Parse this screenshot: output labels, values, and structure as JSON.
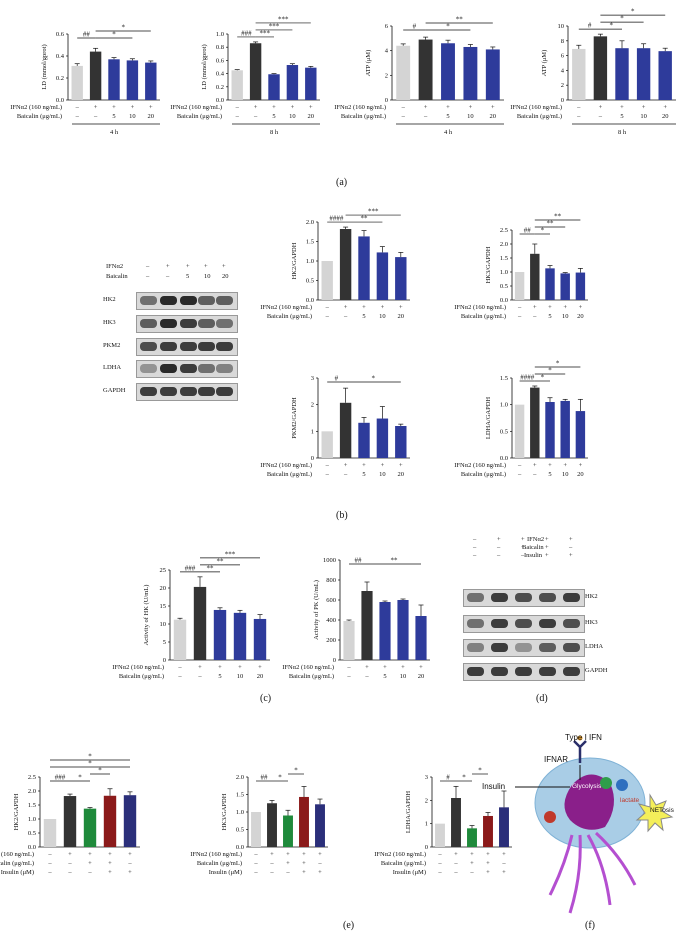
{
  "colors": {
    "ctrl": "#d4d4d4",
    "ifn": "#333333",
    "baic": "#2e3b9b",
    "green": "#1f8a3b",
    "red": "#8b1a1a",
    "navy": "#2b2f7a"
  },
  "panel_labels": {
    "a": "(a)",
    "b": "(b)",
    "c": "(c)",
    "d": "(d)",
    "e": "(e)",
    "f": "(f)"
  },
  "rows": {
    "ifn": "IFNα2 (160 ng/mL)",
    "baic": "Baicalin (μg/mL)",
    "ins": "Insulin (μM)",
    "ifn_cols4": [
      "–",
      "+",
      "+",
      "+",
      "+"
    ],
    "baic_cols4": [
      "–",
      "–",
      "5",
      "10",
      "20"
    ],
    "ifn_cols5": [
      "–",
      "+",
      "+",
      "+",
      "+"
    ],
    "baic_cols5": [
      "–",
      "–",
      "+",
      "+",
      "–"
    ],
    "ins_cols5": [
      "–",
      "–",
      "–",
      "+",
      "+"
    ],
    "h4": "4 h",
    "h8": "8 h"
  },
  "chart_data": [
    {
      "id": "a1",
      "type": "bar",
      "ylabel": "LD (mmol/gprot)",
      "ylim": [
        0,
        0.6
      ],
      "yticks": [
        "0.0",
        "0.2",
        "0.4",
        "0.6"
      ],
      "values": [
        0.31,
        0.44,
        0.37,
        0.36,
        0.34
      ],
      "errors": [
        0.02,
        0.03,
        0.015,
        0.015,
        0.015
      ],
      "colors": [
        "ctrl",
        "ifn",
        "baic",
        "baic",
        "baic"
      ],
      "sig": [
        {
          "t": "##",
          "a": 0,
          "b": 1,
          "lvl": 0
        },
        {
          "t": "*",
          "a": 1,
          "b": 3,
          "lvl": 0
        },
        {
          "t": "*",
          "a": 1,
          "b": 4,
          "lvl": 1
        }
      ],
      "rows": "a",
      "time": "4 h"
    },
    {
      "id": "a2",
      "type": "bar",
      "ylabel": "LD (mmol/gprot)",
      "ylim": [
        0,
        1.0
      ],
      "yticks": [
        "0.0",
        "0.2",
        "0.4",
        "0.6",
        "0.8",
        "1.0"
      ],
      "values": [
        0.45,
        0.86,
        0.39,
        0.53,
        0.49
      ],
      "errors": [
        0.01,
        0.02,
        0.01,
        0.02,
        0.02
      ],
      "colors": [
        "ctrl",
        "ifn",
        "baic",
        "baic",
        "baic"
      ],
      "sig": [
        {
          "t": "###",
          "a": 0,
          "b": 1,
          "lvl": 0
        },
        {
          "t": "***",
          "a": 1,
          "b": 2,
          "lvl": 0
        },
        {
          "t": "***",
          "a": 1,
          "b": 3,
          "lvl": 1
        },
        {
          "t": "***",
          "a": 1,
          "b": 4,
          "lvl": 2
        }
      ],
      "rows": "a",
      "time": "8 h"
    },
    {
      "id": "a3",
      "type": "bar",
      "ylabel": "ATP (μM)",
      "ylim": [
        0,
        6
      ],
      "yticks": [
        "0",
        "2",
        "4",
        "6"
      ],
      "values": [
        4.4,
        4.9,
        4.6,
        4.3,
        4.1
      ],
      "errors": [
        0.15,
        0.2,
        0.25,
        0.2,
        0.2
      ],
      "colors": [
        "ctrl",
        "ifn",
        "baic",
        "baic",
        "baic"
      ],
      "sig": [
        {
          "t": "#",
          "a": 0,
          "b": 1,
          "lvl": 0
        },
        {
          "t": "*",
          "a": 1,
          "b": 3,
          "lvl": 0
        },
        {
          "t": "**",
          "a": 1,
          "b": 4,
          "lvl": 1
        }
      ],
      "rows": "a",
      "time": "4 h"
    },
    {
      "id": "a4",
      "type": "bar",
      "ylabel": "ATP (μM)",
      "ylim": [
        0,
        10
      ],
      "yticks": [
        "0",
        "2",
        "4",
        "6",
        "8",
        "10"
      ],
      "values": [
        6.9,
        8.6,
        7.0,
        7.0,
        6.6
      ],
      "errors": [
        0.5,
        0.3,
        1.0,
        0.6,
        0.4
      ],
      "colors": [
        "ctrl",
        "ifn",
        "baic",
        "baic",
        "baic"
      ],
      "sig": [
        {
          "t": "#",
          "a": 0,
          "b": 1,
          "lvl": 0
        },
        {
          "t": "*",
          "a": 1,
          "b": 2,
          "lvl": 0
        },
        {
          "t": "*",
          "a": 1,
          "b": 3,
          "lvl": 1
        },
        {
          "t": "*",
          "a": 1,
          "b": 4,
          "lvl": 2
        }
      ],
      "rows": "a",
      "time": "8 h"
    },
    {
      "id": "b1",
      "type": "bar",
      "ylabel": "HK2/GAPDH",
      "ylim": [
        0,
        2.0
      ],
      "yticks": [
        "0.0",
        "0.5",
        "1.0",
        "1.5",
        "2.0"
      ],
      "values": [
        1.0,
        1.82,
        1.63,
        1.22,
        1.1
      ],
      "errors": [
        0,
        0.05,
        0.15,
        0.15,
        0.12
      ],
      "colors": [
        "ctrl",
        "ifn",
        "baic",
        "baic",
        "baic"
      ],
      "sig": [
        {
          "t": "####",
          "a": 0,
          "b": 1,
          "lvl": 0
        },
        {
          "t": "**",
          "a": 1,
          "b": 3,
          "lvl": 0
        },
        {
          "t": "***",
          "a": 1,
          "b": 4,
          "lvl": 1
        }
      ],
      "rows": "b"
    },
    {
      "id": "b2",
      "type": "bar",
      "ylabel": "HK3/GAPDH",
      "ylim": [
        0,
        2.5
      ],
      "yticks": [
        "0.0",
        "0.5",
        "1.0",
        "1.5",
        "2.0",
        "2.5"
      ],
      "values": [
        1.0,
        1.65,
        1.13,
        0.95,
        0.98
      ],
      "errors": [
        0,
        0.35,
        0.1,
        0.03,
        0.15
      ],
      "colors": [
        "ctrl",
        "ifn",
        "baic",
        "baic",
        "baic"
      ],
      "sig": [
        {
          "t": "##",
          "a": 0,
          "b": 1,
          "lvl": 0
        },
        {
          "t": "*",
          "a": 1,
          "b": 2,
          "lvl": 0
        },
        {
          "t": "**",
          "a": 1,
          "b": 3,
          "lvl": 1
        },
        {
          "t": "**",
          "a": 1,
          "b": 4,
          "lvl": 2
        }
      ],
      "rows": "b"
    },
    {
      "id": "b3",
      "type": "bar",
      "ylabel": "PKM2/GAPDH",
      "ylim": [
        0,
        3
      ],
      "yticks": [
        "0",
        "1",
        "2",
        "3"
      ],
      "values": [
        1.0,
        2.07,
        1.32,
        1.48,
        1.2
      ],
      "errors": [
        0,
        0.55,
        0.2,
        0.45,
        0.07
      ],
      "colors": [
        "ctrl",
        "ifn",
        "baic",
        "baic",
        "baic"
      ],
      "sig": [
        {
          "t": "#",
          "a": 0,
          "b": 1,
          "lvl": 0
        },
        {
          "t": "*",
          "a": 1,
          "b": 4,
          "lvl": 0
        }
      ],
      "rows": "b"
    },
    {
      "id": "b4",
      "type": "bar",
      "ylabel": "LDHA/GAPDH",
      "ylim": [
        0,
        1.5
      ],
      "yticks": [
        "0.0",
        "0.5",
        "1.0",
        "1.5"
      ],
      "values": [
        1.0,
        1.32,
        1.05,
        1.07,
        0.88
      ],
      "errors": [
        0,
        0.03,
        0.08,
        0.03,
        0.22
      ],
      "colors": [
        "ctrl",
        "ifn",
        "baic",
        "baic",
        "baic"
      ],
      "sig": [
        {
          "t": "####",
          "a": 0,
          "b": 1,
          "lvl": 0
        },
        {
          "t": "*",
          "a": 1,
          "b": 2,
          "lvl": 0
        },
        {
          "t": "*",
          "a": 1,
          "b": 3,
          "lvl": 1
        },
        {
          "t": "*",
          "a": 1,
          "b": 4,
          "lvl": 2
        }
      ],
      "rows": "b"
    },
    {
      "id": "c1",
      "type": "bar",
      "ylabel": "Activity of HK (U/mL)",
      "ylim": [
        0,
        25
      ],
      "yticks": [
        "0",
        "5",
        "10",
        "15",
        "20",
        "25"
      ],
      "values": [
        11.2,
        20.3,
        13.9,
        13.1,
        11.4
      ],
      "errors": [
        0.4,
        2.8,
        0.6,
        0.7,
        1.2
      ],
      "colors": [
        "ctrl",
        "ifn",
        "baic",
        "baic",
        "baic"
      ],
      "sig": [
        {
          "t": "###",
          "a": 0,
          "b": 1,
          "lvl": 0
        },
        {
          "t": "**",
          "a": 1,
          "b": 2,
          "lvl": 0
        },
        {
          "t": "**",
          "a": 1,
          "b": 3,
          "lvl": 1
        },
        {
          "t": "***",
          "a": 1,
          "b": 4,
          "lvl": 2
        }
      ],
      "rows": "c"
    },
    {
      "id": "c2",
      "type": "bar",
      "ylabel": "Activity of PK (U/mL)",
      "ylim": [
        0,
        1000
      ],
      "yticks": [
        "0",
        "200",
        "400",
        "600",
        "800",
        "1000"
      ],
      "values": [
        390,
        690,
        580,
        600,
        440
      ],
      "errors": [
        10,
        90,
        10,
        10,
        110
      ],
      "colors": [
        "ctrl",
        "ifn",
        "baic",
        "baic",
        "baic"
      ],
      "sig": [
        {
          "t": "##",
          "a": 0,
          "b": 1,
          "lvl": 0
        },
        {
          "t": "**",
          "a": 1,
          "b": 4,
          "lvl": 0
        }
      ],
      "rows": "c"
    },
    {
      "id": "e1",
      "type": "bar",
      "ylabel": "HK2/GAPDH",
      "ylim": [
        0,
        2.5
      ],
      "yticks": [
        "0.0",
        "0.5",
        "1.0",
        "1.5",
        "2.0",
        "2.5"
      ],
      "values": [
        1.0,
        1.82,
        1.37,
        1.83,
        1.85
      ],
      "errors": [
        0,
        0.07,
        0.04,
        0.25,
        0.12
      ],
      "colors": [
        "ctrl",
        "ifn",
        "green",
        "red",
        "navy"
      ],
      "sig": [
        {
          "t": "###",
          "a": 0,
          "b": 1,
          "lvl": 0
        },
        {
          "t": "*",
          "a": 1,
          "b": 2,
          "lvl": 0
        },
        {
          "t": "*",
          "a": 2,
          "b": 3,
          "lvl": 1
        },
        {
          "t": "*",
          "a": 0,
          "b": 4,
          "lvl": 2
        },
        {
          "t": "*",
          "a": 0,
          "b": 4,
          "lvl": 3
        }
      ],
      "rows": "e"
    },
    {
      "id": "e2",
      "type": "bar",
      "ylabel": "HK3/GAPDH",
      "ylim": [
        0,
        2.0
      ],
      "yticks": [
        "0.0",
        "0.5",
        "1.0",
        "1.5",
        "2.0"
      ],
      "values": [
        1.0,
        1.25,
        0.9,
        1.43,
        1.22
      ],
      "errors": [
        0,
        0.08,
        0.15,
        0.3,
        0.15
      ],
      "colors": [
        "ctrl",
        "ifn",
        "green",
        "red",
        "navy"
      ],
      "sig": [
        {
          "t": "##",
          "a": 0,
          "b": 1,
          "lvl": 0
        },
        {
          "t": "*",
          "a": 1,
          "b": 2,
          "lvl": 0
        },
        {
          "t": "*",
          "a": 2,
          "b": 3,
          "lvl": 1
        }
      ],
      "rows": "e"
    },
    {
      "id": "e3",
      "type": "bar",
      "ylabel": "LDHA/GAPDH",
      "ylim": [
        0,
        3
      ],
      "yticks": [
        "0",
        "1",
        "2",
        "3"
      ],
      "values": [
        1.0,
        2.1,
        0.8,
        1.33,
        1.7
      ],
      "errors": [
        0,
        0.5,
        0.12,
        0.15,
        0.7
      ],
      "colors": [
        "ctrl",
        "ifn",
        "green",
        "red",
        "navy"
      ],
      "sig": [
        {
          "t": "#",
          "a": 0,
          "b": 1,
          "lvl": 0
        },
        {
          "t": "*",
          "a": 1,
          "b": 2,
          "lvl": 0
        },
        {
          "t": "*",
          "a": 2,
          "b": 3,
          "lvl": 1
        }
      ],
      "rows": "e"
    }
  ],
  "blot_b": {
    "header_ifn": "IFNα2",
    "header_baic": "Baicalin",
    "ifn": [
      "–",
      "+",
      "+",
      "+",
      "+"
    ],
    "baic": [
      "–",
      "–",
      "5",
      "10",
      "20"
    ],
    "proteins": [
      "HK2",
      "HK3",
      "PKM2",
      "LDHA",
      "GAPDH"
    ],
    "intensity": [
      [
        0.6,
        1,
        1,
        0.7,
        0.7
      ],
      [
        0.7,
        1,
        0.9,
        0.7,
        0.6
      ],
      [
        0.8,
        0.9,
        0.9,
        0.9,
        0.9
      ],
      [
        0.4,
        1,
        0.9,
        0.6,
        0.5
      ],
      [
        0.9,
        0.9,
        0.9,
        0.9,
        0.9
      ]
    ]
  },
  "blot_d": {
    "header_ifn": "IFNα2",
    "header_baic": "Baicalin",
    "header_ins": "Insulin",
    "ifn": [
      "–",
      "+",
      "+",
      "+",
      "+"
    ],
    "baic": [
      "–",
      "–",
      "+",
      "+",
      "–"
    ],
    "ins": [
      "–",
      "–",
      "–",
      "+",
      "+"
    ],
    "proteins": [
      "HK2",
      "HK3",
      "LDHA",
      "GAPDH"
    ],
    "intensity": [
      [
        0.6,
        0.9,
        0.8,
        0.8,
        0.9
      ],
      [
        0.6,
        0.9,
        0.8,
        0.9,
        0.8
      ],
      [
        0.5,
        0.9,
        0.4,
        0.7,
        0.8
      ],
      [
        0.9,
        0.9,
        0.9,
        0.9,
        0.9
      ]
    ]
  },
  "diagram_f": {
    "type_ifn": "Type I IFN",
    "ifnar": "IFNAR",
    "insulin": "Insulin",
    "glycolysis": "Glycolysis",
    "lactate": "lactate",
    "netosis": "NETosis"
  }
}
